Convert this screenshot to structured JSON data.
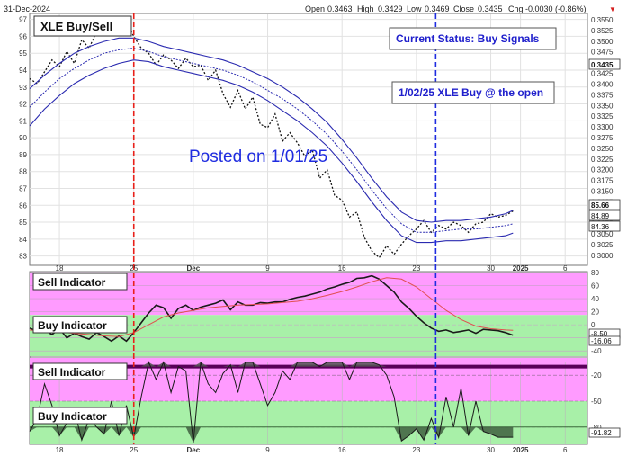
{
  "header": {
    "date": "31-Dec-2024",
    "open_label": "Open",
    "open": "0.3463",
    "high_label": "High",
    "high": "0.3429",
    "low_label": "Low",
    "low": "0.3469",
    "close_label": "Close",
    "close": "0.3435",
    "chg_label": "Chg",
    "chg": "-0.0030 (-0.86%)",
    "chg_marker": "▼"
  },
  "colors": {
    "price_line": "#111111",
    "band": "#2a2ab0",
    "band_mid": "#2a2ab0",
    "sell_zone": "#ff9bff",
    "buy_zone": "#a8f0a8",
    "signal_red": "#e8201a",
    "signal_blue": "#1f2ce0",
    "indicator_line": "#1a1a1a",
    "indicator_signal": "#e05050",
    "fill_dark": "#555555",
    "thick_line": "#5a005a",
    "posted_text": "#1f2ce0"
  },
  "annotations": {
    "title": "XLE Buy/Sell",
    "status": "Current Status: Buy Signals",
    "buy_note": "1/02/25 XLE Buy @ the open",
    "posted": "Posted on 1/01/25",
    "sell_indicator_1": "Sell Indicator",
    "buy_indicator_1": "Buy Indicator",
    "sell_indicator_2": "Sell Indicator",
    "buy_indicator_2": "Buy Indicator"
  },
  "chart_data": [
    {
      "type": "line",
      "title": "XLE Buy/Sell",
      "x_tick_labels": [
        "18",
        "25",
        "Dec",
        "9",
        "16",
        "23",
        "30",
        "2025",
        "6"
      ],
      "x_tick_index": [
        2,
        7,
        11,
        16,
        21,
        26,
        31,
        33,
        36
      ],
      "y_left_ticks": [
        83,
        84,
        85,
        86,
        87,
        88,
        89,
        90,
        91,
        92,
        93,
        94,
        95,
        96,
        97
      ],
      "y_left_range": [
        82.5,
        97.3
      ],
      "y_right_ticks": [
        "0.3000",
        "0.3025",
        "0.3050",
        "0.3075",
        "0.3100",
        "0.3125",
        "0.3150",
        "0.3175",
        "0.3200",
        "0.3225",
        "0.3250",
        "0.3275",
        "0.3300",
        "0.3325",
        "0.3350",
        "0.3375",
        "0.3400",
        "0.3425",
        "0.3450",
        "0.3475",
        "0.3500",
        "0.3525",
        "0.3550"
      ],
      "right_labels": {
        "close": "0.3435",
        "a": "85.66",
        "b": "84.89",
        "c": "84.36"
      },
      "vertical_markers": [
        {
          "x_index": 7.0,
          "color": "red",
          "style": "dashed"
        },
        {
          "x_index": 27.3,
          "color": "blue",
          "style": "dashed"
        }
      ],
      "series": [
        {
          "style": "dotted",
          "x": [
            0,
            0.5,
            1,
            1.5,
            2,
            2.5,
            3,
            3.5,
            4,
            4.5,
            5,
            5.5,
            6,
            6.5,
            7,
            7.5,
            8,
            8.5,
            9,
            9.5,
            10,
            10.5,
            11,
            11.5,
            12,
            12.5,
            13,
            13.5,
            14,
            14.5,
            15,
            15.5,
            16,
            16.5,
            17,
            17.5,
            18,
            18.5,
            19,
            19.5,
            20,
            20.5,
            21,
            21.5,
            22,
            22.5,
            23,
            23.5,
            24,
            24.5,
            25,
            25.5,
            26,
            26.5,
            27,
            27.5,
            28,
            28.5,
            29,
            29.5,
            30,
            30.5,
            31,
            31.5,
            32,
            32.5
          ],
          "values": [
            93.5,
            93.2,
            93.9,
            94.6,
            94.2,
            95.1,
            94.4,
            95.8,
            95.3,
            96.3,
            96.1,
            97.0,
            96.5,
            96.8,
            96.0,
            95.3,
            95.0,
            94.3,
            94.9,
            94.6,
            94.1,
            94.7,
            94.2,
            94.3,
            93.4,
            94.0,
            92.6,
            91.8,
            92.8,
            91.7,
            92.4,
            90.8,
            90.6,
            91.4,
            89.8,
            90.3,
            89.7,
            88.9,
            89.3,
            87.6,
            88.1,
            86.6,
            86.3,
            85.3,
            85.6,
            84.1,
            83.3,
            82.9,
            83.6,
            83.1,
            83.7,
            84.2,
            84.6,
            85.1,
            84.4,
            84.8,
            84.6,
            85.0,
            84.8,
            84.4,
            84.9,
            85.0,
            85.5,
            85.3,
            85.4,
            85.66
          ]
        },
        {
          "style": "solid",
          "x": [
            0,
            1,
            2,
            3,
            4,
            5,
            6,
            7,
            8,
            9,
            10,
            11,
            12,
            13,
            14,
            15,
            16,
            17,
            18,
            19,
            20,
            21,
            22,
            23,
            24,
            25,
            26,
            27,
            28,
            29,
            30,
            31,
            32,
            32.5
          ],
          "values": [
            92.9,
            93.7,
            94.4,
            95.0,
            95.4,
            95.7,
            95.9,
            95.9,
            95.7,
            95.4,
            95.2,
            95.0,
            94.8,
            94.6,
            94.3,
            93.9,
            93.5,
            93.0,
            92.4,
            91.7,
            90.9,
            89.9,
            88.8,
            87.6,
            86.5,
            85.6,
            85.1,
            85.0,
            85.1,
            85.1,
            85.2,
            85.3,
            85.5,
            85.7
          ]
        },
        {
          "style": "dotted",
          "x": [
            0,
            1,
            2,
            3,
            4,
            5,
            6,
            7,
            8,
            9,
            10,
            11,
            12,
            13,
            14,
            15,
            16,
            17,
            18,
            19,
            20,
            21,
            22,
            23,
            24,
            25,
            26,
            27,
            28,
            29,
            30,
            31,
            32,
            32.5
          ],
          "values": [
            91.8,
            92.7,
            93.5,
            94.1,
            94.6,
            95.0,
            95.2,
            95.3,
            95.1,
            94.8,
            94.6,
            94.4,
            94.2,
            94.0,
            93.7,
            93.3,
            92.8,
            92.3,
            91.7,
            91.0,
            90.2,
            89.2,
            88.1,
            86.9,
            85.8,
            84.9,
            84.4,
            84.4,
            84.5,
            84.6,
            84.6,
            84.7,
            84.8,
            84.9
          ]
        },
        {
          "style": "solid",
          "x": [
            0,
            1,
            2,
            3,
            4,
            5,
            6,
            7,
            8,
            9,
            10,
            11,
            12,
            13,
            14,
            15,
            16,
            17,
            18,
            19,
            20,
            21,
            22,
            23,
            24,
            25,
            26,
            27,
            28,
            29,
            30,
            31,
            32,
            32.5
          ],
          "values": [
            90.7,
            91.7,
            92.5,
            93.2,
            93.7,
            94.1,
            94.4,
            94.6,
            94.5,
            94.2,
            94.0,
            93.8,
            93.6,
            93.4,
            93.1,
            92.7,
            92.2,
            91.6,
            91.0,
            90.3,
            89.5,
            88.5,
            87.4,
            86.2,
            85.1,
            84.2,
            83.8,
            83.8,
            83.9,
            83.9,
            84.0,
            84.1,
            84.2,
            84.36
          ]
        }
      ]
    },
    {
      "type": "line",
      "title": "Sell Indicator / Buy Indicator",
      "y_ticks": [
        80,
        60,
        40,
        20,
        0,
        -20,
        -40
      ],
      "y_range": [
        -48,
        80
      ],
      "zones": {
        "sell_above": 15,
        "buy_below": 15
      },
      "right_labels": {
        "a": "-8.50",
        "b": "-16.06"
      },
      "series": [
        {
          "name": "indicator",
          "x": [
            0,
            0.5,
            1,
            1.5,
            2,
            2.5,
            3,
            3.5,
            4,
            4.5,
            5,
            5.5,
            6,
            6.5,
            7,
            7.5,
            8,
            8.5,
            9,
            9.5,
            10,
            10.5,
            11,
            11.5,
            12,
            12.5,
            13,
            13.5,
            14,
            14.5,
            15,
            15.5,
            16,
            16.5,
            17,
            17.5,
            18,
            18.5,
            19,
            19.5,
            20,
            20.5,
            21,
            21.5,
            22,
            22.5,
            23,
            23.5,
            24,
            24.5,
            25,
            25.5,
            26,
            26.5,
            27,
            27.5,
            28,
            28.5,
            29,
            29.5,
            30,
            30.5,
            31,
            31.5,
            32,
            32.5
          ],
          "values": [
            -5,
            -10,
            -8,
            -15,
            -6,
            -20,
            -13,
            -18,
            -22,
            -12,
            -18,
            -25,
            -17,
            -25,
            -12,
            3,
            18,
            30,
            26,
            10,
            25,
            30,
            22,
            27,
            30,
            33,
            38,
            23,
            35,
            30,
            30,
            34,
            33,
            35,
            35,
            39,
            42,
            44,
            47,
            50,
            55,
            58,
            62,
            65,
            71,
            72,
            75,
            70,
            60,
            50,
            35,
            25,
            13,
            3,
            -5,
            -10,
            -8,
            -12,
            -10,
            -8,
            -13,
            -7,
            -8,
            -9,
            -12,
            -16.06
          ]
        },
        {
          "name": "signal",
          "x": [
            0,
            1,
            2,
            3,
            4,
            5,
            6,
            7,
            8,
            9,
            10,
            11,
            12,
            13,
            14,
            15,
            16,
            17,
            18,
            19,
            20,
            21,
            22,
            23,
            24,
            25,
            26,
            27,
            28,
            29,
            30,
            31,
            32,
            32.5
          ],
          "values": [
            -8,
            -10,
            -11,
            -13,
            -15,
            -17,
            -18,
            -12,
            0,
            12,
            18,
            22,
            26,
            28,
            30,
            31,
            32,
            34,
            36,
            40,
            45,
            51,
            58,
            66,
            72,
            70,
            58,
            40,
            22,
            8,
            -2,
            -6,
            -8,
            -8.5
          ]
        }
      ]
    },
    {
      "type": "line",
      "title": "Sell Indicator / Buy Indicator",
      "y_ticks": [
        -20,
        -50,
        -80
      ],
      "y_range": [
        -100,
        0
      ],
      "threshold_lines": [
        -10,
        -20,
        -80
      ],
      "right_labels": {
        "a": "-91.82"
      },
      "series": [
        {
          "name": "oscillator",
          "x": [
            0,
            0.5,
            1,
            1.5,
            2,
            2.5,
            3,
            3.5,
            4,
            4.5,
            5,
            5.5,
            6,
            6.5,
            7,
            7.5,
            8,
            8.5,
            9,
            9.5,
            10,
            10.5,
            11,
            11.5,
            12,
            12.5,
            13,
            13.5,
            14,
            14.5,
            15,
            15.5,
            16,
            16.5,
            17,
            17.5,
            18,
            18.5,
            19,
            19.5,
            20,
            20.5,
            21,
            21.5,
            22,
            22.5,
            23,
            23.5,
            24,
            24.5,
            25,
            25.5,
            26,
            26.5,
            27,
            27.5,
            28,
            28.5,
            29,
            29.5,
            30,
            30.5,
            31,
            31.5,
            32,
            32.5
          ],
          "values": [
            -85,
            -70,
            -30,
            -55,
            -90,
            -75,
            -60,
            -95,
            -70,
            -80,
            -88,
            -50,
            -90,
            -55,
            -92,
            -45,
            -5,
            -25,
            -5,
            -40,
            -10,
            -15,
            -98,
            -5,
            -30,
            -40,
            -18,
            -8,
            -40,
            -5,
            -5,
            -30,
            -55,
            -40,
            -15,
            -25,
            -5,
            -5,
            -5,
            -10,
            -5,
            -5,
            -5,
            -25,
            -5,
            -5,
            -5,
            -8,
            -20,
            -45,
            -96,
            -90,
            -82,
            -95,
            -70,
            -92,
            -45,
            -80,
            -35,
            -90,
            -50,
            -85,
            -88,
            -91.82,
            -91.82,
            -91.82
          ]
        }
      ]
    }
  ]
}
